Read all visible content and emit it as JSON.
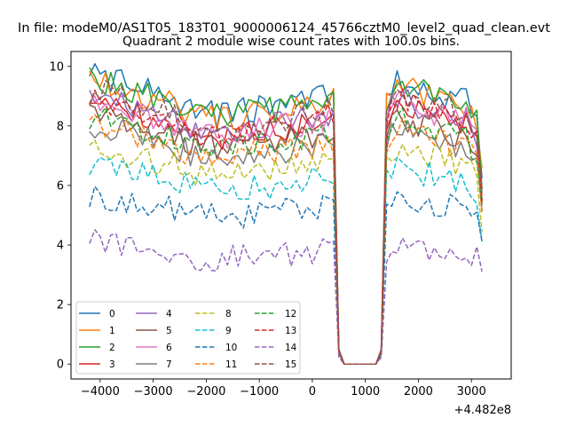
{
  "figure": {
    "suptitle": "In file: modeM0/AS1T05_183T01_9000006124_45766cztM0_level2_quad_clean.evt",
    "offset_text": "+4.482e8"
  },
  "chart_data": {
    "type": "line",
    "title": "Quadrant 2 module wise count rates with 100.0s bins.",
    "xlabel": "",
    "ylabel": "",
    "x_offset": 448200000,
    "xlim": [
      -4550,
      3750
    ],
    "ylim": [
      -0.5,
      10.5
    ],
    "x_ticks": [
      -4000,
      -3000,
      -2000,
      -1000,
      0,
      1000,
      2000,
      3000
    ],
    "x_tick_labels": [
      "−4000",
      "−3000",
      "−2000",
      "−1000",
      "0",
      "1000",
      "2000",
      "3000"
    ],
    "y_ticks": [
      0,
      2,
      4,
      6,
      8,
      10
    ],
    "y_tick_labels": [
      "0",
      "2",
      "4",
      "6",
      "8",
      "10"
    ],
    "grid": false,
    "legend_position": "lower-left",
    "time_bins": {
      "start": -4200,
      "end": 3200,
      "step": 100
    },
    "gap_interval": [
      500,
      1300
    ],
    "envelope": {
      "x": [
        -4200,
        -3700,
        -3200,
        -2700,
        -2200,
        -1700,
        -1200,
        -700,
        -200,
        300,
        450,
        500,
        600,
        1200,
        1300,
        1400,
        1500,
        1600,
        1900,
        2400,
        2900,
        3100,
        3200
      ],
      "factor": [
        1.0,
        0.98,
        0.95,
        0.92,
        0.88,
        0.86,
        0.88,
        0.89,
        0.91,
        0.93,
        0.93,
        0.05,
        0.0,
        0.0,
        0.05,
        0.92,
        0.96,
        1.0,
        0.97,
        0.94,
        0.91,
        0.86,
        0.65
      ]
    },
    "series": [
      {
        "name": "0",
        "color": "#1f77b4",
        "dash": "solid",
        "base": 9.7
      },
      {
        "name": "1",
        "color": "#ff7f0e",
        "dash": "solid",
        "base": 9.5
      },
      {
        "name": "2",
        "color": "#2ca02c",
        "dash": "solid",
        "base": 9.6
      },
      {
        "name": "3",
        "color": "#d62728",
        "dash": "solid",
        "base": 8.8
      },
      {
        "name": "4",
        "color": "#9467bd",
        "dash": "solid",
        "base": 9.0
      },
      {
        "name": "5",
        "color": "#8c564b",
        "dash": "solid",
        "base": 8.4
      },
      {
        "name": "6",
        "color": "#e377c2",
        "dash": "solid",
        "base": 8.9
      },
      {
        "name": "7",
        "color": "#7f7f7f",
        "dash": "solid",
        "base": 8.0
      },
      {
        "name": "8",
        "color": "#bcbd22",
        "dash": "dashed",
        "base": 7.3
      },
      {
        "name": "9",
        "color": "#17becf",
        "dash": "dashed",
        "base": 6.7
      },
      {
        "name": "10",
        "color": "#1f77b4",
        "dash": "dashed",
        "base": 5.7
      },
      {
        "name": "11",
        "color": "#ff7f0e",
        "dash": "dashed",
        "base": 8.0
      },
      {
        "name": "12",
        "color": "#2ca02c",
        "dash": "dashed",
        "base": 8.3
      },
      {
        "name": "13",
        "color": "#d62728",
        "dash": "dashed",
        "base": 8.9
      },
      {
        "name": "14",
        "color": "#9467bd",
        "dash": "dashed",
        "base": 4.1
      },
      {
        "name": "15",
        "color": "#8c564b",
        "dash": "dashed",
        "base": 9.2
      }
    ]
  }
}
